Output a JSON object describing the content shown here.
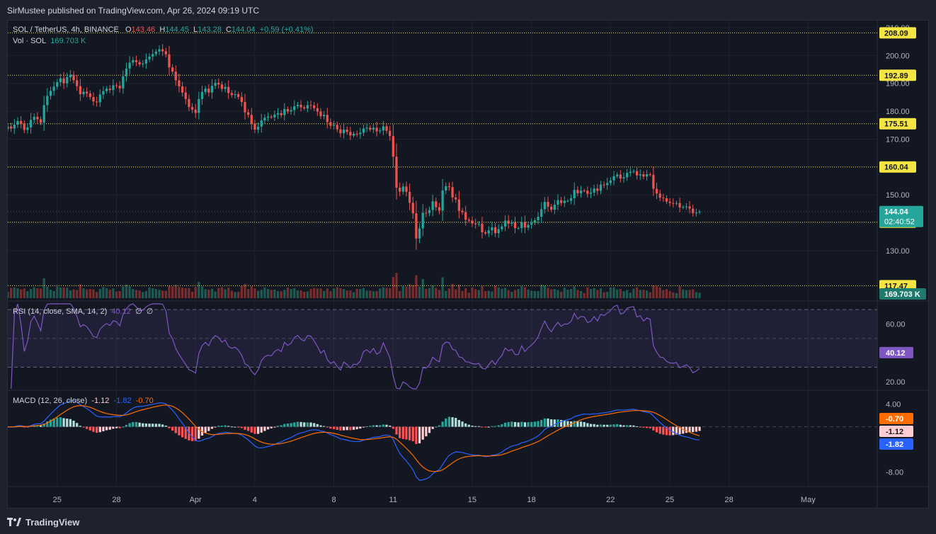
{
  "header": {
    "publisher": "SirMustee published on TradingView.com, Apr 26, 2024 09:19 UTC"
  },
  "footer": {
    "brand": "TradingView"
  },
  "legend": {
    "symbol": "SOL / TetherUS, 4h, BINANCE",
    "o_label": "O",
    "o": "143.46",
    "h_label": "H",
    "h": "144.45",
    "l_label": "L",
    "l": "143.28",
    "c_label": "C",
    "c": "144.04",
    "change": "+0.59 (+0.41%)",
    "vol_label": "Vol · SOL",
    "vol": "169.703 K",
    "rsi_label": "RSI (14, close, SMA, 14, 2)",
    "rsi_value": "40.12",
    "rsi_extra1": "∅",
    "rsi_extra2": "∅",
    "macd_label": "MACD (12, 26, close)",
    "macd_hist": "-1.12",
    "macd_line": "-1.82",
    "macd_signal": "-0.70"
  },
  "colors": {
    "up": "#26a69a",
    "down": "#ef5350",
    "level": "#f5e542",
    "rsi": "#7e57c2",
    "macd": "#2962ff",
    "signal": "#ff6d00",
    "hist_up_strong": "#26a69a",
    "hist_up_weak": "#b2dfdb",
    "hist_down_strong": "#ff5252",
    "hist_down_weak": "#ffcdd2",
    "background": "#131722"
  },
  "chart_data": {
    "type": "candlestick",
    "symbol": "SOL / TetherUS",
    "interval": "4h",
    "exchange": "BINANCE",
    "ylim": [
      113,
      212
    ],
    "y_ticks": [
      "130.00",
      "140.00",
      "150.00",
      "160.00",
      "170.00",
      "180.00",
      "190.00",
      "200.00",
      "210.00"
    ],
    "x_ticks": [
      "25",
      "28",
      "Apr",
      "4",
      "8",
      "11",
      "15",
      "18",
      "22",
      "25",
      "28",
      "May"
    ],
    "x_tick_days": [
      25,
      28,
      32,
      35,
      39,
      42,
      46,
      49,
      53,
      56,
      59,
      63
    ],
    "x_range_days": [
      22.5,
      66.5
    ],
    "levels": [
      "208.09",
      "192.89",
      "175.51",
      "160.04",
      "140.22",
      "117.47"
    ],
    "level_values": [
      208.09,
      192.89,
      175.51,
      160.04,
      140.22,
      117.47
    ],
    "last_price": "144.04",
    "last_price_value": 144.04,
    "countdown": "02:40:52",
    "candle_interval_days": 0.1667,
    "first_candle_day": 22.5,
    "closes": [
      174.5,
      173.8,
      175.2,
      176.5,
      175.4,
      173.3,
      174.2,
      176.9,
      178.0,
      177.1,
      175.9,
      182.2,
      185.5,
      187.3,
      188.8,
      190.4,
      191.8,
      190.0,
      192.2,
      193.1,
      191.1,
      189.0,
      186.1,
      187.0,
      186.4,
      185.1,
      183.5,
      183.2,
      186.0,
      187.2,
      188.1,
      187.6,
      189.3,
      189.1,
      188.2,
      192.5,
      195.3,
      197.4,
      198.3,
      197.6,
      196.8,
      197.1,
      198.6,
      199.6,
      200.5,
      201.4,
      202.2,
      201.5,
      200.4,
      195.7,
      194.2,
      191.1,
      188.9,
      186.7,
      184.4,
      181.5,
      180.6,
      179.4,
      184.4,
      186.9,
      188.1,
      186.7,
      189.1,
      190.2,
      189.6,
      188.0,
      188.7,
      186.5,
      185.8,
      186.1,
      185.1,
      183.3,
      179.6,
      178.7,
      175.6,
      173.4,
      174.5,
      176.7,
      177.7,
      178.1,
      177.8,
      178.8,
      179.3,
      178.6,
      180.8,
      179.9,
      180.4,
      181.8,
      182.3,
      181.4,
      181.0,
      182.2,
      182.1,
      181.1,
      179.9,
      178.2,
      178.7,
      176.1,
      174.8,
      175.1,
      173.5,
      172.1,
      173.4,
      172.6,
      171.3,
      171.9,
      171.8,
      172.3,
      173.8,
      174.1,
      173.4,
      174.1,
      172.8,
      173.1,
      174.6,
      173.0,
      171.1,
      163.7,
      152.6,
      151.2,
      153.0,
      151.1,
      147.2,
      143.4,
      134.4,
      138.0,
      143.6,
      143.5,
      144.6,
      147.7,
      145.6,
      144.4,
      151.6,
      153.1,
      152.8,
      149.1,
      148.4,
      144.3,
      143.8,
      141.1,
      140.8,
      139.8,
      139.5,
      139.7,
      136.6,
      136.2,
      137.3,
      138.4,
      136.3,
      137.7,
      138.7,
      140.8,
      139.7,
      140.1,
      138.1,
      138.1,
      140.3,
      138.3,
      139.3,
      140.0,
      140.9,
      142.2,
      144.9,
      147.5,
      145.8,
      144.7,
      146.5,
      148.1,
      147.1,
      147.9,
      147.9,
      148.8,
      151.8,
      150.6,
      151.6,
      151.5,
      150.4,
      150.8,
      152.3,
      151.5,
      153.7,
      153.5,
      154.3,
      155.2,
      156.7,
      157.3,
      155.9,
      156.3,
      157.9,
      158.3,
      158.5,
      157.0,
      157.4,
      156.6,
      157.4,
      157.2,
      152.2,
      150.5,
      149.0,
      148.8,
      147.6,
      147.1,
      147.0,
      147.1,
      145.5,
      145.7,
      145.9,
      145.1,
      143.5,
      143.7,
      144.0
    ],
    "volume_unit": "SOL",
    "volume_last": "169.703 K",
    "rsi": {
      "label": "RSI (14, close, SMA, 14, 2)",
      "value": "40.12",
      "ylim": [
        15,
        74
      ],
      "y_ticks": [
        "20.00",
        "60.00"
      ],
      "bands": [
        70,
        50,
        30
      ]
    },
    "macd": {
      "label": "MACD (12, 26, close)",
      "ylim": [
        -10.3,
        6.2
      ],
      "y_ticks": [
        "4.00",
        "-8.00"
      ],
      "histogram_last": "-1.12",
      "macd_last": "-1.82",
      "signal_last": "-0.70"
    }
  }
}
